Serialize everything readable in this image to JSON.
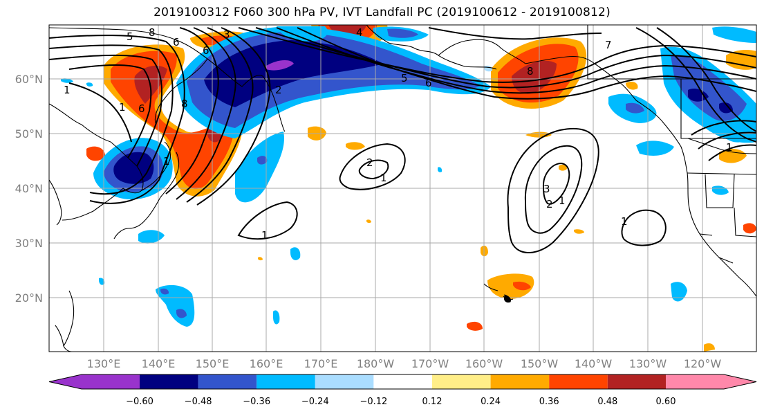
{
  "title": "2019100312 F060 300 hPa PV, IVT Landfall PC (2019100612 - 2019100812)",
  "lat_labels": [
    "60°N",
    "50°N",
    "40°N",
    "30°N",
    "20°N"
  ],
  "lon_labels": [
    "130°E",
    "140°E",
    "150°E",
    "160°E",
    "170°E",
    "180°W",
    "170°W",
    "160°W",
    "150°W",
    "140°W",
    "130°W",
    "120°W"
  ],
  "colorbar": {
    "colors": [
      "#9933cc",
      "#000080",
      "#3355cc",
      "#00bbff",
      "#aaddff",
      "#ffffff",
      "#ffee88",
      "#ffaa00",
      "#ff4400",
      "#b22222",
      "#ff88aa"
    ],
    "tick_labels": [
      "−0.60",
      "−0.48",
      "−0.36",
      "−0.24",
      "−0.12",
      "0.12",
      "0.24",
      "0.36",
      "0.48",
      "0.60"
    ]
  },
  "contour_labels": [
    "1",
    "1",
    "5",
    "8",
    "6",
    "3",
    "6",
    "8",
    "6",
    "4",
    "5",
    "1",
    "2",
    "1",
    "1",
    "3",
    "2",
    "1",
    "1",
    "7",
    "8",
    "6",
    "1",
    "2"
  ]
}
